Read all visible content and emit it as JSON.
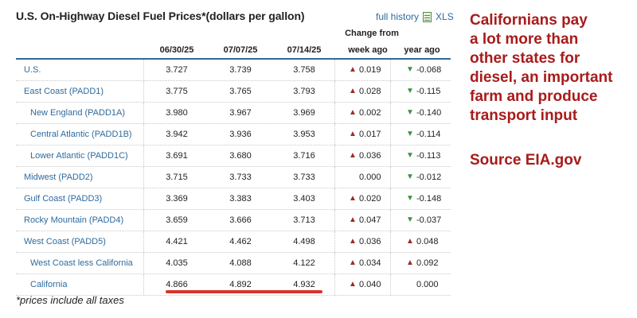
{
  "title": "U.S. On-Highway Diesel Fuel Prices*(dollars per gallon)",
  "links": {
    "history": "full history",
    "xls": "XLS"
  },
  "columns": {
    "dates": [
      "06/30/25",
      "07/07/25",
      "07/14/25"
    ],
    "change_header": "Change from",
    "week_ago": "week ago",
    "year_ago": "year ago"
  },
  "rows": [
    {
      "name": "U.S.",
      "v1": "3.727",
      "v2": "3.739",
      "v3": "3.758",
      "week": "0.019",
      "week_dir": "up",
      "year": "-0.068",
      "year_dir": "down"
    },
    {
      "name": "East Coast (PADD1)",
      "v1": "3.775",
      "v2": "3.765",
      "v3": "3.793",
      "week": "0.028",
      "week_dir": "up",
      "year": "-0.115",
      "year_dir": "down"
    },
    {
      "name": "New England (PADD1A)",
      "v1": "3.980",
      "v2": "3.967",
      "v3": "3.969",
      "week": "0.002",
      "week_dir": "up",
      "year": "-0.140",
      "year_dir": "down"
    },
    {
      "name": "Central Atlantic (PADD1B)",
      "v1": "3.942",
      "v2": "3.936",
      "v3": "3.953",
      "week": "0.017",
      "week_dir": "up",
      "year": "-0.114",
      "year_dir": "down"
    },
    {
      "name": "Lower Atlantic (PADD1C)",
      "v1": "3.691",
      "v2": "3.680",
      "v3": "3.716",
      "week": "0.036",
      "week_dir": "up",
      "year": "-0.113",
      "year_dir": "down"
    },
    {
      "name": "Midwest (PADD2)",
      "v1": "3.715",
      "v2": "3.733",
      "v3": "3.733",
      "week": "0.000",
      "week_dir": "none",
      "year": "-0.012",
      "year_dir": "down"
    },
    {
      "name": "Gulf Coast (PADD3)",
      "v1": "3.369",
      "v2": "3.383",
      "v3": "3.403",
      "week": "0.020",
      "week_dir": "up",
      "year": "-0.148",
      "year_dir": "down"
    },
    {
      "name": "Rocky Mountain (PADD4)",
      "v1": "3.659",
      "v2": "3.666",
      "v3": "3.713",
      "week": "0.047",
      "week_dir": "up",
      "year": "-0.037",
      "year_dir": "down"
    },
    {
      "name": "West Coast (PADD5)",
      "v1": "4.421",
      "v2": "4.462",
      "v3": "4.498",
      "week": "0.036",
      "week_dir": "up",
      "year": "0.048",
      "year_dir": "up"
    },
    {
      "name": "West Coast less California",
      "v1": "4.035",
      "v2": "4.088",
      "v3": "4.122",
      "week": "0.034",
      "week_dir": "up",
      "year": "0.092",
      "year_dir": "up"
    },
    {
      "name": "California",
      "v1": "4.866",
      "v2": "4.892",
      "v3": "4.932",
      "week": "0.040",
      "week_dir": "up",
      "year": "0.000",
      "year_dir": "none"
    }
  ],
  "footnote": "*prices include all taxes",
  "callout": {
    "lines": [
      "Californians pay",
      "a lot more than",
      "other states for",
      "diesel, an important",
      "farm and produce",
      "transport input"
    ],
    "source": "Source EIA.gov"
  },
  "colors": {
    "accent": "#a81b1b",
    "link": "#2e6b9e",
    "up": "#9b2c2c",
    "down": "#3f8f3f",
    "highlight": "#d9342b"
  },
  "icons": {
    "up": "arrow-up-icon",
    "down": "arrow-down-icon",
    "xls": "spreadsheet-icon"
  }
}
